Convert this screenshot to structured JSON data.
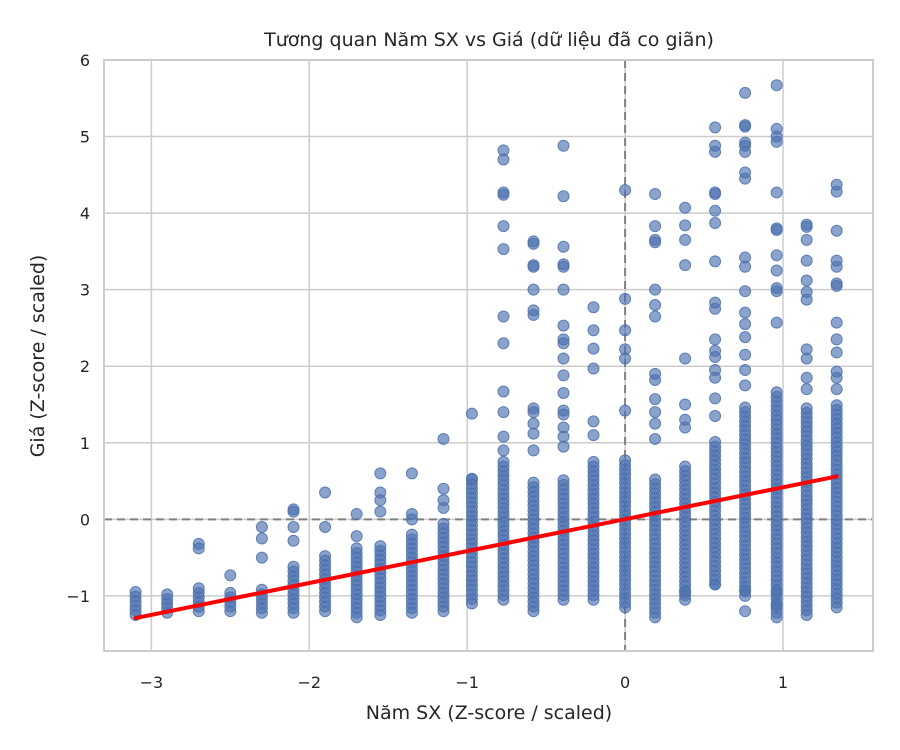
{
  "chart_data": {
    "type": "scatter",
    "title": "Tương quan Năm SX vs Giá (dữ liệu đã co giãn)",
    "xlabel": "Năm SX (Z-score / scaled)",
    "ylabel": "Giá (Z-score / scaled)",
    "xlim": [
      -3.3,
      1.57
    ],
    "ylim": [
      -1.72,
      6.0
    ],
    "xticks": [
      -3,
      -2,
      -1,
      0,
      1
    ],
    "yticks": [
      -1,
      0,
      1,
      2,
      3,
      4,
      5,
      6
    ],
    "xtick_labels": [
      "−3",
      "−2",
      "−1",
      "0",
      "1"
    ],
    "ytick_labels": [
      "−1",
      "0",
      "1",
      "2",
      "3",
      "4",
      "5",
      "6"
    ],
    "grid": true,
    "reference_lines": {
      "x": 0,
      "y": 0,
      "style": "dashed",
      "color": "#808080"
    },
    "point_color": "#4c72b0",
    "point_alpha": 0.65,
    "series": [
      {
        "type": "scatter",
        "columns": [
          {
            "x": -3.1,
            "ymin": -1.25,
            "ymax": -0.95
          },
          {
            "x": -2.9,
            "ymin": -1.22,
            "ymax": -0.95
          },
          {
            "x": -2.7,
            "ymin": -1.2,
            "ymax": -0.9
          },
          {
            "x": -2.5,
            "ymin": -1.2,
            "ymax": -0.95
          },
          {
            "x": -2.3,
            "ymin": -1.22,
            "ymax": -0.88
          },
          {
            "x": -2.1,
            "ymin": -1.22,
            "ymax": -0.58
          },
          {
            "x": -1.9,
            "ymin": -1.2,
            "ymax": -0.45
          },
          {
            "x": -1.7,
            "ymin": -1.28,
            "ymax": -0.35
          },
          {
            "x": -1.55,
            "ymin": -1.25,
            "ymax": -0.3
          },
          {
            "x": -1.35,
            "ymin": -1.22,
            "ymax": -0.2
          },
          {
            "x": -1.15,
            "ymin": -1.2,
            "ymax": -0.05
          },
          {
            "x": -0.97,
            "ymin": -1.1,
            "ymax": 0.55
          },
          {
            "x": -0.77,
            "ymin": -1.05,
            "ymax": 0.75
          },
          {
            "x": -0.58,
            "ymin": -1.2,
            "ymax": 0.5
          },
          {
            "x": -0.39,
            "ymin": -1.05,
            "ymax": 0.55
          },
          {
            "x": -0.2,
            "ymin": -1.05,
            "ymax": 0.8
          },
          {
            "x": 0.0,
            "ymin": -1.15,
            "ymax": 0.8
          },
          {
            "x": 0.19,
            "ymin": -1.28,
            "ymax": 0.55
          },
          {
            "x": 0.38,
            "ymin": -1.05,
            "ymax": 0.7
          },
          {
            "x": 0.57,
            "ymin": -0.85,
            "ymax": 1.05
          },
          {
            "x": 0.76,
            "ymin": -1.0,
            "ymax": 1.5
          },
          {
            "x": 0.96,
            "ymin": -1.28,
            "ymax": 1.7
          },
          {
            "x": 1.15,
            "ymin": -1.25,
            "ymax": 1.5
          },
          {
            "x": 1.34,
            "ymin": -1.15,
            "ymax": 1.5
          }
        ],
        "outliers": [
          [
            -2.7,
            -0.32
          ],
          [
            -2.7,
            -0.38
          ],
          [
            -2.5,
            -0.73
          ],
          [
            -2.3,
            -0.5
          ],
          [
            -2.3,
            -0.25
          ],
          [
            -2.3,
            -0.1
          ],
          [
            -2.1,
            0.1
          ],
          [
            -2.1,
            0.13
          ],
          [
            -2.1,
            -0.1
          ],
          [
            -2.1,
            -0.28
          ],
          [
            -1.9,
            0.35
          ],
          [
            -1.9,
            -0.1
          ],
          [
            -1.7,
            0.07
          ],
          [
            -1.7,
            -0.22
          ],
          [
            -1.55,
            0.6
          ],
          [
            -1.55,
            0.35
          ],
          [
            -1.55,
            0.25
          ],
          [
            -1.55,
            0.1
          ],
          [
            -1.35,
            0.6
          ],
          [
            -1.35,
            0.07
          ],
          [
            -1.35,
            0.0
          ],
          [
            -1.15,
            0.4
          ],
          [
            -1.15,
            0.25
          ],
          [
            -1.15,
            0.15
          ],
          [
            -0.97,
            1.38
          ],
          [
            -0.97,
            0.53
          ],
          [
            -1.15,
            1.05
          ],
          [
            -0.77,
            4.82
          ],
          [
            -0.77,
            4.7
          ],
          [
            -0.77,
            4.27
          ],
          [
            -0.77,
            4.24
          ],
          [
            -0.77,
            3.83
          ],
          [
            -0.77,
            3.53
          ],
          [
            -0.77,
            2.65
          ],
          [
            -0.77,
            2.3
          ],
          [
            -0.77,
            1.67
          ],
          [
            -0.77,
            1.4
          ],
          [
            -0.77,
            1.08
          ],
          [
            -0.77,
            0.9
          ],
          [
            -0.58,
            3.63
          ],
          [
            -0.58,
            3.6
          ],
          [
            -0.58,
            3.32
          ],
          [
            -0.58,
            3.3
          ],
          [
            -0.58,
            3.0
          ],
          [
            -0.58,
            2.73
          ],
          [
            -0.58,
            2.67
          ],
          [
            -0.58,
            1.45
          ],
          [
            -0.58,
            1.4
          ],
          [
            -0.58,
            1.25
          ],
          [
            -0.58,
            1.12
          ],
          [
            -0.58,
            0.9
          ],
          [
            -0.39,
            4.88
          ],
          [
            -0.39,
            4.22
          ],
          [
            -0.39,
            3.56
          ],
          [
            -0.39,
            3.33
          ],
          [
            -0.39,
            3.3
          ],
          [
            -0.39,
            3.0
          ],
          [
            -0.39,
            2.53
          ],
          [
            -0.39,
            2.35
          ],
          [
            -0.39,
            2.3
          ],
          [
            -0.39,
            2.1
          ],
          [
            -0.39,
            1.88
          ],
          [
            -0.39,
            1.65
          ],
          [
            -0.39,
            1.42
          ],
          [
            -0.39,
            1.37
          ],
          [
            -0.39,
            1.2
          ],
          [
            -0.39,
            1.08
          ],
          [
            -0.39,
            0.95
          ],
          [
            -0.2,
            2.77
          ],
          [
            -0.2,
            2.47
          ],
          [
            -0.2,
            2.23
          ],
          [
            -0.2,
            1.97
          ],
          [
            -0.2,
            1.28
          ],
          [
            -0.2,
            1.1
          ],
          [
            0.0,
            4.3
          ],
          [
            0.0,
            2.88
          ],
          [
            0.0,
            2.47
          ],
          [
            0.0,
            2.22
          ],
          [
            0.0,
            2.1
          ],
          [
            0.0,
            1.42
          ],
          [
            0.19,
            4.25
          ],
          [
            0.19,
            3.83
          ],
          [
            0.19,
            3.65
          ],
          [
            0.19,
            3.62
          ],
          [
            0.19,
            3.0
          ],
          [
            0.19,
            2.8
          ],
          [
            0.19,
            2.65
          ],
          [
            0.19,
            1.9
          ],
          [
            0.19,
            1.82
          ],
          [
            0.19,
            1.57
          ],
          [
            0.19,
            1.4
          ],
          [
            0.19,
            1.25
          ],
          [
            0.19,
            1.05
          ],
          [
            0.38,
            4.07
          ],
          [
            0.38,
            3.84
          ],
          [
            0.38,
            3.65
          ],
          [
            0.38,
            3.32
          ],
          [
            0.38,
            2.1
          ],
          [
            0.38,
            1.5
          ],
          [
            0.38,
            1.3
          ],
          [
            0.38,
            1.2
          ],
          [
            0.57,
            5.12
          ],
          [
            0.57,
            4.88
          ],
          [
            0.57,
            4.8
          ],
          [
            0.57,
            4.27
          ],
          [
            0.57,
            4.25
          ],
          [
            0.57,
            4.03
          ],
          [
            0.57,
            3.87
          ],
          [
            0.57,
            3.37
          ],
          [
            0.57,
            2.83
          ],
          [
            0.57,
            2.75
          ],
          [
            0.57,
            2.35
          ],
          [
            0.57,
            2.2
          ],
          [
            0.57,
            2.12
          ],
          [
            0.57,
            1.95
          ],
          [
            0.57,
            1.85
          ],
          [
            0.57,
            1.58
          ],
          [
            0.57,
            1.35
          ],
          [
            0.76,
            5.57
          ],
          [
            0.76,
            5.15
          ],
          [
            0.76,
            5.13
          ],
          [
            0.76,
            4.92
          ],
          [
            0.76,
            4.88
          ],
          [
            0.76,
            4.8
          ],
          [
            0.76,
            4.53
          ],
          [
            0.76,
            4.45
          ],
          [
            0.76,
            3.42
          ],
          [
            0.76,
            3.3
          ],
          [
            0.76,
            2.98
          ],
          [
            0.76,
            2.7
          ],
          [
            0.76,
            2.55
          ],
          [
            0.76,
            2.38
          ],
          [
            0.76,
            2.15
          ],
          [
            0.76,
            1.95
          ],
          [
            0.76,
            1.75
          ],
          [
            0.96,
            5.67
          ],
          [
            0.96,
            5.1
          ],
          [
            0.96,
            5.0
          ],
          [
            0.96,
            4.93
          ],
          [
            0.96,
            4.27
          ],
          [
            0.96,
            3.8
          ],
          [
            0.96,
            3.78
          ],
          [
            0.96,
            3.45
          ],
          [
            0.96,
            3.25
          ],
          [
            0.96,
            3.02
          ],
          [
            0.96,
            2.98
          ],
          [
            0.96,
            2.57
          ],
          [
            1.15,
            3.85
          ],
          [
            1.15,
            3.82
          ],
          [
            1.15,
            3.65
          ],
          [
            1.15,
            3.38
          ],
          [
            1.15,
            3.12
          ],
          [
            1.15,
            2.97
          ],
          [
            1.15,
            2.87
          ],
          [
            1.15,
            2.22
          ],
          [
            1.15,
            2.1
          ],
          [
            1.15,
            1.85
          ],
          [
            1.15,
            1.7
          ],
          [
            1.34,
            4.37
          ],
          [
            1.34,
            4.28
          ],
          [
            1.34,
            3.77
          ],
          [
            1.34,
            3.38
          ],
          [
            1.34,
            3.3
          ],
          [
            1.34,
            3.08
          ],
          [
            1.34,
            3.05
          ],
          [
            1.34,
            2.57
          ],
          [
            1.34,
            2.35
          ],
          [
            1.34,
            2.18
          ],
          [
            1.34,
            1.93
          ],
          [
            1.34,
            1.85
          ],
          [
            1.34,
            1.7
          ],
          [
            0.96,
            -0.95
          ],
          [
            0.76,
            -0.93
          ],
          [
            0.96,
            -1.12
          ],
          [
            0.76,
            -1.2
          ],
          [
            0.57,
            -0.85
          ],
          [
            0.38,
            -0.95
          ]
        ]
      },
      {
        "type": "line",
        "color": "#ff0000",
        "x": [
          -3.1,
          1.34
        ],
        "y": [
          -1.29,
          0.56
        ]
      }
    ]
  }
}
